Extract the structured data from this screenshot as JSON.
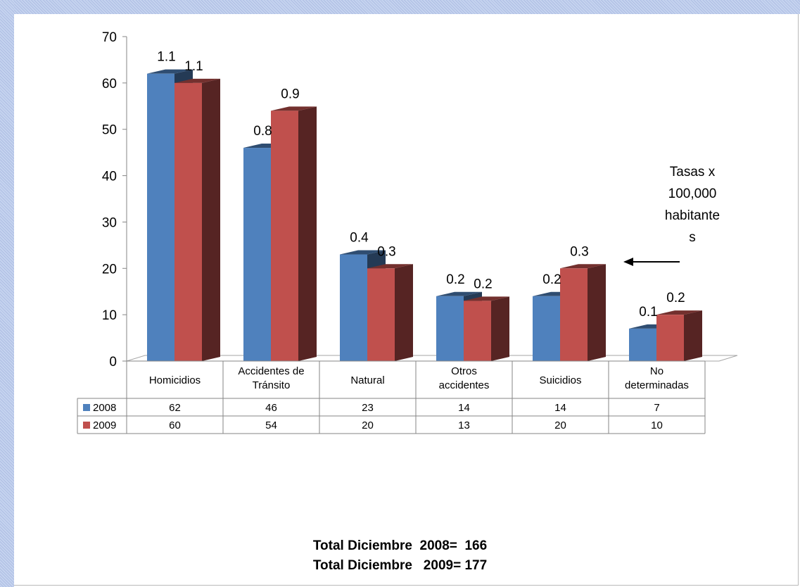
{
  "chart_data": {
    "type": "bar",
    "categories": [
      [
        "Homicidios"
      ],
      [
        "Accidentes de",
        "Tránsito"
      ],
      [
        "Natural"
      ],
      [
        "Otros",
        "accidentes"
      ],
      [
        "Suicidios"
      ],
      [
        "No",
        "determinadas"
      ]
    ],
    "series": [
      {
        "name": "2008",
        "values": [
          62,
          46,
          23,
          14,
          14,
          7
        ],
        "rate_labels": [
          "1.1",
          "0.8",
          "0.4",
          "0.2",
          "0.2",
          "0.1"
        ],
        "color": "#4f81bd"
      },
      {
        "name": "2009",
        "values": [
          60,
          54,
          20,
          13,
          20,
          10
        ],
        "rate_labels": [
          "1.1",
          "0.9",
          "0.3",
          "0.2",
          "0.3",
          "0.2"
        ],
        "color": "#c0504d"
      }
    ],
    "ylim": [
      0,
      70
    ],
    "yticks": [
      0,
      10,
      20,
      30,
      40,
      50,
      60,
      70
    ],
    "data_table": true,
    "annotation": [
      "Tasas x",
      "100,000",
      "habitante",
      "s"
    ]
  },
  "totals": {
    "line1": "Total Diciembre  2008=  166",
    "line2": "Total Diciembre   2009= 177"
  }
}
